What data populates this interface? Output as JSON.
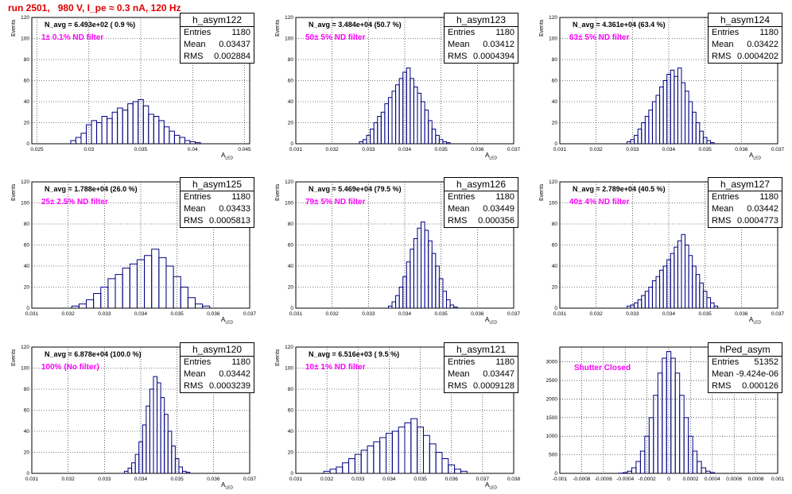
{
  "title": "run 2501,   980 V, I_pe ≈ 0.3 nA, 120 Hz",
  "stat_labels": {
    "entries": "Entries",
    "mean": "Mean",
    "rms": "RMS"
  },
  "colors": {
    "line": "#000080",
    "title": "#e00000",
    "annotation": "#ff00ff",
    "grid": "#000000"
  },
  "chart_data": [
    {
      "type": "bar",
      "name": "h_asym122",
      "entries": "1180",
      "mean": "0.03437",
      "rms": "0.002884",
      "navg": "N_avg = 6.493e+02 ( 0.9 %)",
      "filter": "1± 0.1% ND filter",
      "ylabel": "Events",
      "xlabel": "A_LED",
      "xlim": [
        0.0245,
        0.0455
      ],
      "ylim": [
        0,
        120
      ],
      "xticks": [
        0.025,
        0.03,
        0.035,
        0.04,
        0.045
      ],
      "xtick_labels": [
        "0.025",
        "0.03",
        "0.035",
        "0.04",
        "0.045"
      ],
      "yticks": [
        0,
        20,
        40,
        60,
        80,
        100,
        120
      ],
      "x": [
        0.0285,
        0.029,
        0.0295,
        0.03,
        0.0305,
        0.031,
        0.0315,
        0.032,
        0.0325,
        0.033,
        0.0335,
        0.034,
        0.0345,
        0.035,
        0.0355,
        0.036,
        0.0365,
        0.037,
        0.0375,
        0.038,
        0.0385,
        0.039,
        0.0395,
        0.04,
        0.0405
      ],
      "values": [
        3,
        6,
        10,
        18,
        22,
        20,
        26,
        24,
        30,
        34,
        32,
        38,
        40,
        42,
        36,
        28,
        26,
        22,
        16,
        12,
        8,
        6,
        3,
        2,
        1
      ]
    },
    {
      "type": "bar",
      "name": "h_asym123",
      "entries": "1180",
      "mean": "0.03412",
      "rms": "0.0004394",
      "navg": "N_avg = 3.484e+04 (50.7 %)",
      "filter": "50± 5% ND filter",
      "ylabel": "Events",
      "xlabel": "A_LED",
      "xlim": [
        0.031,
        0.037
      ],
      "ylim": [
        0,
        120
      ],
      "xticks": [
        0.031,
        0.032,
        0.033,
        0.034,
        0.035,
        0.036,
        0.037
      ],
      "xtick_labels": [
        "0.031",
        "0.032",
        "0.033",
        "0.034",
        "0.035",
        "0.036",
        "0.037"
      ],
      "yticks": [
        0,
        20,
        40,
        60,
        80,
        100,
        120
      ],
      "x": [
        0.0328,
        0.0329,
        0.033,
        0.0331,
        0.0332,
        0.0333,
        0.0334,
        0.0335,
        0.0336,
        0.0337,
        0.0338,
        0.0339,
        0.034,
        0.0341,
        0.0342,
        0.0343,
        0.0344,
        0.0345,
        0.0346,
        0.0347,
        0.0348,
        0.0349,
        0.035,
        0.0351,
        0.0352
      ],
      "values": [
        2,
        4,
        8,
        14,
        20,
        26,
        30,
        38,
        44,
        50,
        56,
        62,
        68,
        72,
        62,
        54,
        48,
        40,
        32,
        22,
        14,
        8,
        4,
        2,
        1
      ]
    },
    {
      "type": "bar",
      "name": "h_asym124",
      "entries": "1180",
      "mean": "0.03422",
      "rms": "0.0004202",
      "navg": "N_avg = 4.361e+04 (63.4 %)",
      "filter": "63± 5% ND filter",
      "ylabel": "Events",
      "xlabel": "A_LED",
      "xlim": [
        0.031,
        0.037
      ],
      "ylim": [
        0,
        120
      ],
      "xticks": [
        0.031,
        0.032,
        0.033,
        0.034,
        0.035,
        0.036,
        0.037
      ],
      "xtick_labels": [
        "0.031",
        "0.032",
        "0.033",
        "0.034",
        "0.035",
        "0.036",
        "0.037"
      ],
      "yticks": [
        0,
        20,
        40,
        60,
        80,
        100,
        120
      ],
      "x": [
        0.0329,
        0.033,
        0.0331,
        0.0332,
        0.0333,
        0.0334,
        0.0335,
        0.0336,
        0.0337,
        0.0338,
        0.0339,
        0.034,
        0.0341,
        0.0342,
        0.0343,
        0.0344,
        0.0345,
        0.0346,
        0.0347,
        0.0348,
        0.0349,
        0.035,
        0.0351,
        0.0352
      ],
      "values": [
        2,
        4,
        8,
        14,
        20,
        26,
        32,
        40,
        46,
        54,
        60,
        66,
        70,
        64,
        72,
        58,
        50,
        40,
        30,
        20,
        12,
        6,
        3,
        1
      ]
    },
    {
      "type": "bar",
      "name": "h_asym125",
      "entries": "1180",
      "mean": "0.03433",
      "rms": "0.0005813",
      "navg": "N_avg = 1.788e+04 (26.0 %)",
      "filter": "25± 2.5% ND filter",
      "ylabel": "Events",
      "xlabel": "A_LED",
      "xlim": [
        0.031,
        0.037
      ],
      "ylim": [
        0,
        120
      ],
      "xticks": [
        0.031,
        0.032,
        0.033,
        0.034,
        0.035,
        0.036,
        0.037
      ],
      "xtick_labels": [
        "0.031",
        "0.032",
        "0.033",
        "0.034",
        "0.035",
        "0.036",
        "0.037"
      ],
      "yticks": [
        0,
        20,
        40,
        60,
        80,
        100,
        120
      ],
      "x": [
        0.0322,
        0.0324,
        0.0326,
        0.0328,
        0.033,
        0.0332,
        0.0334,
        0.0336,
        0.0338,
        0.034,
        0.0342,
        0.0344,
        0.0346,
        0.0348,
        0.035,
        0.0352,
        0.0354,
        0.0356,
        0.0358
      ],
      "values": [
        2,
        4,
        8,
        14,
        20,
        28,
        32,
        38,
        42,
        46,
        50,
        56,
        48,
        40,
        30,
        20,
        10,
        4,
        2
      ]
    },
    {
      "type": "bar",
      "name": "h_asym126",
      "entries": "1180",
      "mean": "0.03449",
      "rms": "0.000356",
      "navg": "N_avg = 5.469e+04 (79.5 %)",
      "filter": "79± 5% ND filter",
      "ylabel": "Events",
      "xlabel": "A_LED",
      "xlim": [
        0.031,
        0.037
      ],
      "ylim": [
        0,
        120
      ],
      "xticks": [
        0.031,
        0.032,
        0.033,
        0.034,
        0.035,
        0.036,
        0.037
      ],
      "xtick_labels": [
        "0.031",
        "0.032",
        "0.033",
        "0.034",
        "0.035",
        "0.036",
        "0.037"
      ],
      "yticks": [
        0,
        20,
        40,
        60,
        80,
        100,
        120
      ],
      "x": [
        0.0336,
        0.0337,
        0.0338,
        0.0339,
        0.034,
        0.0341,
        0.0342,
        0.0343,
        0.0344,
        0.0345,
        0.0346,
        0.0347,
        0.0348,
        0.0349,
        0.035,
        0.0351,
        0.0352,
        0.0353,
        0.0354
      ],
      "values": [
        2,
        6,
        12,
        20,
        30,
        44,
        56,
        66,
        76,
        82,
        74,
        64,
        52,
        40,
        28,
        16,
        8,
        3,
        1
      ]
    },
    {
      "type": "bar",
      "name": "h_asym127",
      "entries": "1180",
      "mean": "0.03442",
      "rms": "0.0004773",
      "navg": "N_avg = 2.789e+04 (40.5 %)",
      "filter": "40± 4% ND filter",
      "ylabel": "Events",
      "xlabel": "A_LED",
      "xlim": [
        0.031,
        0.037
      ],
      "ylim": [
        0,
        120
      ],
      "xticks": [
        0.031,
        0.032,
        0.033,
        0.034,
        0.035,
        0.036,
        0.037
      ],
      "xtick_labels": [
        "0.031",
        "0.032",
        "0.033",
        "0.034",
        "0.035",
        "0.036",
        "0.037"
      ],
      "yticks": [
        0,
        20,
        40,
        60,
        80,
        100,
        120
      ],
      "x": [
        0.0329,
        0.033,
        0.0331,
        0.0332,
        0.0333,
        0.0334,
        0.0335,
        0.0336,
        0.0337,
        0.0338,
        0.0339,
        0.034,
        0.0341,
        0.0342,
        0.0343,
        0.0344,
        0.0345,
        0.0346,
        0.0347,
        0.0348,
        0.0349,
        0.035,
        0.0351,
        0.0352,
        0.0353
      ],
      "values": [
        2,
        3,
        5,
        8,
        12,
        16,
        20,
        26,
        30,
        36,
        40,
        46,
        52,
        58,
        64,
        70,
        60,
        50,
        40,
        32,
        24,
        16,
        10,
        5,
        2
      ]
    },
    {
      "type": "bar",
      "name": "h_asym120",
      "entries": "1180",
      "mean": "0.03442",
      "rms": "0.0003239",
      "navg": "N_avg = 6.878e+04 (100.0 %)",
      "filter": "100% (No filter)",
      "ylabel": "Events",
      "xlabel": "A_LED",
      "xlim": [
        0.031,
        0.037
      ],
      "ylim": [
        0,
        120
      ],
      "xticks": [
        0.031,
        0.032,
        0.033,
        0.034,
        0.035,
        0.036,
        0.037
      ],
      "xtick_labels": [
        "0.031",
        "0.032",
        "0.033",
        "0.034",
        "0.035",
        "0.036",
        "0.037"
      ],
      "yticks": [
        0,
        20,
        40,
        60,
        80,
        100,
        120
      ],
      "x": [
        0.0336,
        0.0337,
        0.0338,
        0.0339,
        0.034,
        0.0341,
        0.0342,
        0.0343,
        0.0344,
        0.0345,
        0.0346,
        0.0347,
        0.0348,
        0.0349,
        0.035,
        0.0351,
        0.0352,
        0.0353
      ],
      "values": [
        2,
        5,
        10,
        18,
        30,
        46,
        64,
        80,
        92,
        86,
        72,
        56,
        40,
        26,
        14,
        6,
        2,
        1
      ]
    },
    {
      "type": "bar",
      "name": "h_asym121",
      "entries": "1180",
      "mean": "0.03447",
      "rms": "0.0009128",
      "navg": "N_avg = 6.516e+03 ( 9.5 %)",
      "filter": "10± 1% ND filter",
      "ylabel": "Events",
      "xlabel": "A_LED",
      "xlim": [
        0.031,
        0.038
      ],
      "ylim": [
        0,
        120
      ],
      "xticks": [
        0.031,
        0.032,
        0.033,
        0.034,
        0.035,
        0.036,
        0.037,
        0.038
      ],
      "xtick_labels": [
        "0.031",
        "0.032",
        "0.033",
        "0.034",
        "0.035",
        "0.036",
        "0.037",
        "0.038"
      ],
      "yticks": [
        0,
        20,
        40,
        60,
        80,
        100,
        120
      ],
      "x": [
        0.032,
        0.0322,
        0.0324,
        0.0326,
        0.0328,
        0.033,
        0.0332,
        0.0334,
        0.0336,
        0.0338,
        0.034,
        0.0342,
        0.0344,
        0.0346,
        0.0348,
        0.035,
        0.0352,
        0.0354,
        0.0356,
        0.0358,
        0.036,
        0.0362,
        0.0364
      ],
      "values": [
        2,
        4,
        6,
        10,
        14,
        18,
        22,
        26,
        30,
        34,
        38,
        40,
        44,
        48,
        52,
        44,
        36,
        28,
        20,
        14,
        8,
        4,
        2
      ]
    },
    {
      "type": "bar",
      "name": "hPed_asym",
      "entries": "51352",
      "mean": "-9.424e-06",
      "rms": "0.000126",
      "navg": "",
      "filter": "Shutter Closed",
      "ylabel": "",
      "xlabel": "",
      "xlim": [
        -0.001,
        0.001
      ],
      "ylim": [
        0,
        3400
      ],
      "xticks": [
        -0.001,
        -0.0008,
        -0.0006,
        -0.0004,
        -0.0002,
        0,
        0.0002,
        0.0004,
        0.0006,
        0.0008,
        0.001
      ],
      "xtick_labels": [
        "-0.001",
        "-0.0008",
        "-0.0006",
        "-0.0004",
        "-0.0002",
        "0",
        "0.0002",
        "0.0004",
        "0.0006",
        "0.0008",
        "0.001"
      ],
      "yticks": [
        0,
        500,
        1000,
        1500,
        2000,
        2500,
        3000
      ],
      "x": [
        -0.00044,
        -0.0004,
        -0.00036,
        -0.00032,
        -0.00028,
        -0.00024,
        -0.0002,
        -0.00016,
        -0.00012,
        -8e-05,
        -4e-05,
        0,
        4e-05,
        8e-05,
        0.00012,
        0.00016,
        0.0002,
        0.00024,
        0.00028,
        0.00032,
        0.00036,
        0.0004
      ],
      "values": [
        5,
        20,
        60,
        150,
        320,
        600,
        1000,
        1500,
        2100,
        2700,
        3100,
        3280,
        3100,
        2700,
        2100,
        1500,
        1000,
        600,
        320,
        150,
        60,
        20
      ]
    }
  ]
}
